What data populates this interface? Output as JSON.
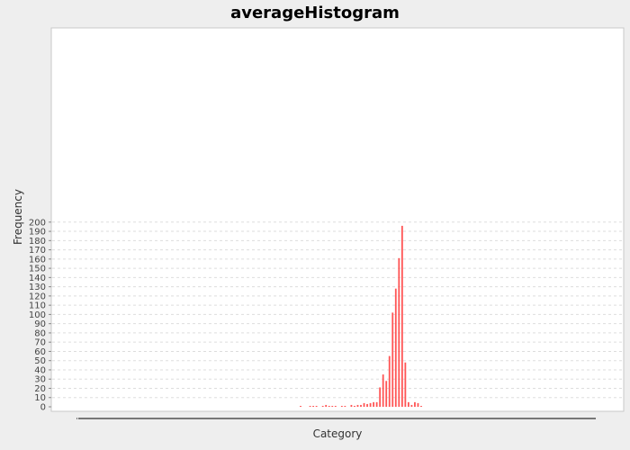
{
  "chart_data": {
    "type": "bar",
    "title": "averageHistogram",
    "xlabel": "Category",
    "ylabel": "Frequency",
    "ylim": [
      0,
      205
    ],
    "y_ticks": [
      0,
      10,
      20,
      30,
      40,
      50,
      60,
      70,
      80,
      90,
      100,
      110,
      120,
      130,
      140,
      150,
      160,
      170,
      180,
      190,
      200
    ],
    "grid": true,
    "legend": "none",
    "bar_color": "#ff5555",
    "values": [
      1,
      0,
      0,
      1,
      1,
      1,
      0,
      1,
      2,
      1,
      1,
      1,
      0,
      1,
      1,
      0,
      2,
      1,
      2,
      2,
      4,
      3,
      4,
      5,
      5,
      21,
      35,
      28,
      55,
      102,
      128,
      161,
      196,
      48,
      5,
      2,
      5,
      4,
      1
    ]
  },
  "colors": {
    "background": "#eeeeee",
    "plot_background": "#ffffff",
    "gridline": "#dddddd"
  }
}
